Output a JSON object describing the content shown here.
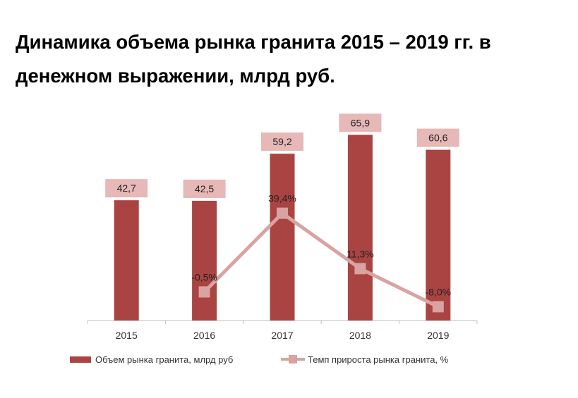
{
  "chart_data": {
    "type": "bar",
    "title": "Динамика объема рынка гранита 2015 – 2019 гг. в денежном выражении, млрд руб.",
    "categories": [
      "2015",
      "2016",
      "2017",
      "2018",
      "2019"
    ],
    "series": [
      {
        "name": "Объем рынка гранита,  млрд руб",
        "type": "bar",
        "values": [
          42.7,
          42.5,
          59.2,
          65.9,
          60.6
        ],
        "labels": [
          "42,7",
          "42,5",
          "59,2",
          "65,9",
          "60,6"
        ],
        "color": "#a94442"
      },
      {
        "name": "Темп прироста рынка гранита, %",
        "type": "line",
        "values": [
          null,
          -0.5,
          39.4,
          11.3,
          -8.0
        ],
        "labels": [
          "",
          "-0,5%",
          "39,4%",
          "11,3%",
          "-8,0%"
        ],
        "color": "#d9a3a1"
      }
    ],
    "ylim": [
      0,
      70
    ],
    "y2lim": [
      -15,
      85
    ],
    "grid": false,
    "legend_position": "bottom",
    "label_box_color": "#e6b8b7"
  }
}
